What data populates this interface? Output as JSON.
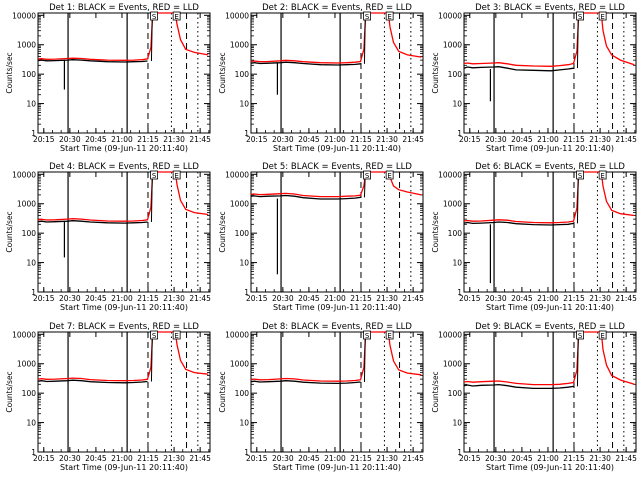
{
  "page": {
    "background": "#ffffff",
    "series_colors": {
      "events": "#000000",
      "lld": "#ff0000"
    }
  },
  "common": {
    "xlabel": "Start Time (09-Jun-11 20:11:40)",
    "ylabel": "Counts/sec",
    "x_ticks": [
      "20:15",
      "20:30",
      "20:45",
      "21:00",
      "21:15",
      "21:30",
      "21:45"
    ],
    "x_tick_minutes": [
      3.33,
      18.33,
      33.33,
      48.33,
      63.33,
      78.33,
      93.33
    ],
    "y_ticks": [
      "1",
      "10",
      "100",
      "1000",
      "10000"
    ],
    "y_tick_values": [
      1,
      10,
      100,
      1000,
      10000
    ],
    "xlim_minutes": [
      0,
      99
    ],
    "ylim": [
      1,
      12000
    ],
    "yscale": "log",
    "markers": {
      "s": "S",
      "e": "E"
    }
  },
  "chart_data": [
    {
      "type": "line",
      "title": "Det 1: BLACK = Events, RED = LLD",
      "xlabel": "Start Time (09-Jun-11 20:11:40)",
      "ylabel": "Counts/sec",
      "yscale": "log",
      "vlines": {
        "solid": [
          17.3,
          51.3
        ],
        "dashed": [
          63.3,
          85.5
        ],
        "dotted": [
          76.8,
          92.0
        ]
      },
      "dropout": {
        "x": 15.2,
        "low": 30,
        "high": 300
      },
      "spike_x": 65.3,
      "events": {
        "x": [
          0,
          2,
          5,
          10,
          17,
          20,
          25,
          30,
          40,
          50,
          55,
          60,
          63
        ],
        "y": [
          290,
          300,
          285,
          290,
          300,
          310,
          300,
          285,
          265,
          260,
          265,
          270,
          280
        ]
      },
      "lld": {
        "x": [
          0,
          2,
          5,
          10,
          17,
          20,
          25,
          30,
          40,
          50,
          55,
          60,
          63,
          65,
          66,
          79,
          80,
          82,
          85,
          90,
          98
        ],
        "y": [
          330,
          335,
          320,
          325,
          340,
          350,
          340,
          320,
          300,
          295,
          300,
          310,
          330,
          800,
          12000,
          12000,
          5000,
          1500,
          700,
          550,
          450
        ]
      },
      "markers": [
        {
          "x": 66.8,
          "label": "S"
        },
        {
          "x": 79.8,
          "label": "E"
        }
      ]
    },
    {
      "type": "line",
      "title": "Det 2: BLACK = Events, RED = LLD",
      "xlabel": "Start Time (09-Jun-11 20:11:40)",
      "ylabel": "Counts/sec",
      "yscale": "log",
      "vlines": {
        "solid": [
          17.3,
          51.3
        ],
        "dashed": [
          63.3,
          85.5
        ],
        "dotted": [
          76.8,
          92.0
        ]
      },
      "dropout": {
        "x": 15.2,
        "low": 20,
        "high": 250
      },
      "spike_x": 65.3,
      "events": {
        "x": [
          0,
          2,
          5,
          10,
          17,
          20,
          25,
          30,
          40,
          50,
          55,
          60,
          63
        ],
        "y": [
          235,
          245,
          230,
          235,
          245,
          255,
          245,
          230,
          210,
          205,
          210,
          215,
          225
        ]
      },
      "lld": {
        "x": [
          0,
          2,
          5,
          10,
          17,
          20,
          25,
          30,
          40,
          50,
          55,
          60,
          63,
          65,
          66,
          79,
          80,
          82,
          85,
          90,
          98
        ],
        "y": [
          270,
          280,
          265,
          270,
          285,
          295,
          285,
          265,
          245,
          240,
          245,
          255,
          270,
          700,
          12000,
          12000,
          4000,
          1200,
          600,
          450,
          380
        ]
      },
      "markers": [
        {
          "x": 66.8,
          "label": "S"
        },
        {
          "x": 79.8,
          "label": "E"
        }
      ]
    },
    {
      "type": "line",
      "title": "Det 3: BLACK = Events, RED = LLD",
      "xlabel": "Start Time (09-Jun-11 20:11:40)",
      "ylabel": "Counts/sec",
      "yscale": "log",
      "vlines": {
        "solid": [
          17.3,
          51.3
        ],
        "dashed": [
          63.3,
          85.5
        ],
        "dotted": [
          76.8,
          92.0
        ]
      },
      "dropout": {
        "x": 15.2,
        "low": 12,
        "high": 150
      },
      "spike_x": 65.3,
      "events": {
        "x": [
          0,
          2,
          5,
          10,
          17,
          20,
          25,
          30,
          40,
          50,
          55,
          60,
          63
        ],
        "y": [
          160,
          175,
          165,
          170,
          175,
          180,
          160,
          140,
          135,
          130,
          140,
          150,
          160
        ]
      },
      "lld": {
        "x": [
          0,
          2,
          5,
          10,
          17,
          20,
          25,
          30,
          40,
          50,
          55,
          60,
          63,
          65,
          66,
          79,
          80,
          82,
          85,
          90,
          98
        ],
        "y": [
          230,
          240,
          225,
          230,
          240,
          245,
          225,
          200,
          190,
          185,
          195,
          210,
          230,
          600,
          12000,
          12000,
          3000,
          900,
          450,
          300,
          210
        ]
      },
      "markers": [
        {
          "x": 66.8,
          "label": "S"
        },
        {
          "x": 79.8,
          "label": "E"
        }
      ]
    },
    {
      "type": "line",
      "title": "Det 4: BLACK = Events, RED = LLD",
      "xlabel": "Start Time (09-Jun-11 20:11:40)",
      "ylabel": "Counts/sec",
      "yscale": "log",
      "vlines": {
        "solid": [
          17.3,
          51.3
        ],
        "dashed": [
          63.3,
          85.5
        ],
        "dotted": [
          76.8,
          92.0
        ]
      },
      "dropout": {
        "x": 15.2,
        "low": 15,
        "high": 250
      },
      "spike_x": 65.3,
      "events": {
        "x": [
          0,
          2,
          5,
          10,
          17,
          20,
          25,
          30,
          40,
          50,
          55,
          60,
          63
        ],
        "y": [
          245,
          255,
          240,
          245,
          255,
          265,
          255,
          240,
          225,
          220,
          225,
          230,
          240
        ]
      },
      "lld": {
        "x": [
          0,
          2,
          5,
          10,
          17,
          20,
          25,
          30,
          40,
          50,
          55,
          60,
          63,
          65,
          66,
          79,
          80,
          82,
          85,
          90,
          98
        ],
        "y": [
          285,
          295,
          280,
          285,
          300,
          310,
          300,
          280,
          260,
          255,
          260,
          270,
          285,
          750,
          12000,
          12000,
          4500,
          1300,
          650,
          500,
          430
        ]
      },
      "markers": [
        {
          "x": 66.8,
          "label": "S"
        },
        {
          "x": 79.8,
          "label": "E"
        }
      ]
    },
    {
      "type": "line",
      "title": "Det 5: BLACK = Events, RED = LLD",
      "xlabel": "Start Time (09-Jun-11 20:11:40)",
      "ylabel": "Counts/sec",
      "yscale": "log",
      "vlines": {
        "solid": [
          17.3,
          51.3
        ],
        "dashed": [
          63.3,
          85.5
        ],
        "dotted": [
          76.8,
          92.0
        ]
      },
      "dropout": {
        "x": 15.2,
        "low": 4,
        "high": 1500
      },
      "spike_x": 65.3,
      "events": {
        "x": [
          0,
          2,
          5,
          10,
          17,
          20,
          25,
          30,
          40,
          50,
          55,
          60,
          63
        ],
        "y": [
          1800,
          1850,
          1750,
          1800,
          1850,
          1900,
          1800,
          1600,
          1450,
          1450,
          1500,
          1550,
          1650
        ]
      },
      "lld": {
        "x": [
          0,
          2,
          5,
          10,
          17,
          20,
          25,
          30,
          40,
          50,
          55,
          60,
          63,
          65,
          66,
          79,
          80,
          82,
          85,
          90,
          98
        ],
        "y": [
          2100,
          2150,
          2050,
          2100,
          2200,
          2250,
          2150,
          1900,
          1750,
          1750,
          1800,
          1850,
          1950,
          4000,
          12000,
          12000,
          8000,
          4000,
          3000,
          2500,
          2000
        ]
      },
      "markers": [
        {
          "x": 66.8,
          "label": "S"
        },
        {
          "x": 79.8,
          "label": "E"
        }
      ]
    },
    {
      "type": "line",
      "title": "Det 6: BLACK = Events, RED = LLD",
      "xlabel": "Start Time (09-Jun-11 20:11:40)",
      "ylabel": "Counts/sec",
      "yscale": "log",
      "vlines": {
        "solid": [
          17.3,
          51.3
        ],
        "dashed": [
          63.3,
          85.5
        ],
        "dotted": [
          76.8,
          92.0
        ]
      },
      "dropout": {
        "x": 15.2,
        "low": 2,
        "high": 200
      },
      "spike_x": 65.3,
      "events": {
        "x": [
          0,
          2,
          5,
          10,
          17,
          20,
          25,
          30,
          40,
          50,
          55,
          60,
          63
        ],
        "y": [
          220,
          230,
          215,
          220,
          230,
          240,
          230,
          210,
          195,
          190,
          195,
          200,
          215
        ]
      },
      "lld": {
        "x": [
          0,
          2,
          5,
          10,
          17,
          20,
          25,
          30,
          40,
          50,
          55,
          60,
          63,
          65,
          66,
          79,
          80,
          82,
          85,
          90,
          98
        ],
        "y": [
          260,
          270,
          255,
          260,
          275,
          285,
          275,
          250,
          230,
          225,
          230,
          240,
          255,
          700,
          12000,
          12000,
          4000,
          1200,
          600,
          460,
          400
        ]
      },
      "markers": [
        {
          "x": 66.8,
          "label": "S"
        },
        {
          "x": 79.8,
          "label": "E"
        }
      ]
    },
    {
      "type": "line",
      "title": "Det 7: BLACK = Events, RED = LLD",
      "xlabel": "Start Time (09-Jun-11 20:11:40)",
      "ylabel": "Counts/sec",
      "yscale": "log",
      "vlines": {
        "solid": [
          17.3,
          51.3
        ],
        "dashed": [
          63.3,
          85.5
        ],
        "dotted": [
          76.8,
          92.0
        ]
      },
      "dropout": null,
      "spike_x": 65.3,
      "events": {
        "x": [
          0,
          2,
          5,
          10,
          17,
          20,
          25,
          30,
          40,
          50,
          55,
          60,
          63
        ],
        "y": [
          255,
          265,
          250,
          255,
          265,
          275,
          265,
          245,
          230,
          225,
          230,
          240,
          250
        ]
      },
      "lld": {
        "x": [
          0,
          2,
          5,
          10,
          17,
          20,
          25,
          30,
          40,
          50,
          55,
          60,
          63,
          65,
          66,
          79,
          80,
          82,
          85,
          90,
          98
        ],
        "y": [
          300,
          310,
          295,
          300,
          315,
          325,
          315,
          290,
          270,
          265,
          270,
          280,
          295,
          750,
          12000,
          12000,
          4500,
          1300,
          650,
          500,
          440
        ]
      },
      "markers": [
        {
          "x": 66.8,
          "label": "S"
        },
        {
          "x": 79.8,
          "label": "E"
        }
      ]
    },
    {
      "type": "line",
      "title": "Det 8: BLACK = Events, RED = LLD",
      "xlabel": "Start Time (09-Jun-11 20:11:40)",
      "ylabel": "Counts/sec",
      "yscale": "log",
      "vlines": {
        "solid": [
          17.3,
          51.3
        ],
        "dashed": [
          63.3,
          85.5
        ],
        "dotted": [
          76.8,
          92.0
        ]
      },
      "dropout": null,
      "spike_x": 65.3,
      "events": {
        "x": [
          0,
          2,
          5,
          10,
          17,
          20,
          25,
          30,
          40,
          50,
          55,
          60,
          63
        ],
        "y": [
          245,
          255,
          240,
          245,
          255,
          265,
          255,
          235,
          220,
          215,
          220,
          230,
          240
        ]
      },
      "lld": {
        "x": [
          0,
          2,
          5,
          10,
          17,
          20,
          25,
          30,
          40,
          50,
          55,
          60,
          63,
          65,
          66,
          79,
          80,
          82,
          85,
          90,
          98
        ],
        "y": [
          290,
          300,
          285,
          290,
          305,
          315,
          305,
          280,
          260,
          255,
          260,
          270,
          285,
          750,
          12000,
          12000,
          4200,
          1250,
          620,
          480,
          420
        ]
      },
      "markers": [
        {
          "x": 66.8,
          "label": "S"
        },
        {
          "x": 79.8,
          "label": "E"
        }
      ]
    },
    {
      "type": "line",
      "title": "Det 9: BLACK = Events, RED = LLD",
      "xlabel": "Start Time (09-Jun-11 20:11:40)",
      "ylabel": "Counts/sec",
      "yscale": "log",
      "vlines": {
        "solid": [
          17.3,
          51.3
        ],
        "dashed": [
          63.3,
          85.5
        ],
        "dotted": [
          76.8,
          92.0
        ]
      },
      "dropout": null,
      "spike_x": 65.3,
      "events": {
        "x": [
          0,
          2,
          5,
          10,
          17,
          20,
          25,
          30,
          40,
          50,
          55,
          60,
          63
        ],
        "y": [
          180,
          190,
          175,
          185,
          190,
          195,
          180,
          160,
          145,
          145,
          150,
          160,
          170
        ]
      },
      "lld": {
        "x": [
          0,
          2,
          5,
          10,
          17,
          20,
          25,
          30,
          40,
          50,
          55,
          60,
          63,
          65,
          66,
          79,
          80,
          82,
          85,
          90,
          98
        ],
        "y": [
          240,
          250,
          235,
          245,
          255,
          260,
          240,
          215,
          195,
          195,
          200,
          215,
          230,
          600,
          12000,
          12000,
          3000,
          900,
          400,
          280,
          200
        ]
      },
      "markers": [
        {
          "x": 66.8,
          "label": "S"
        },
        {
          "x": 79.8,
          "label": "E"
        }
      ]
    }
  ]
}
